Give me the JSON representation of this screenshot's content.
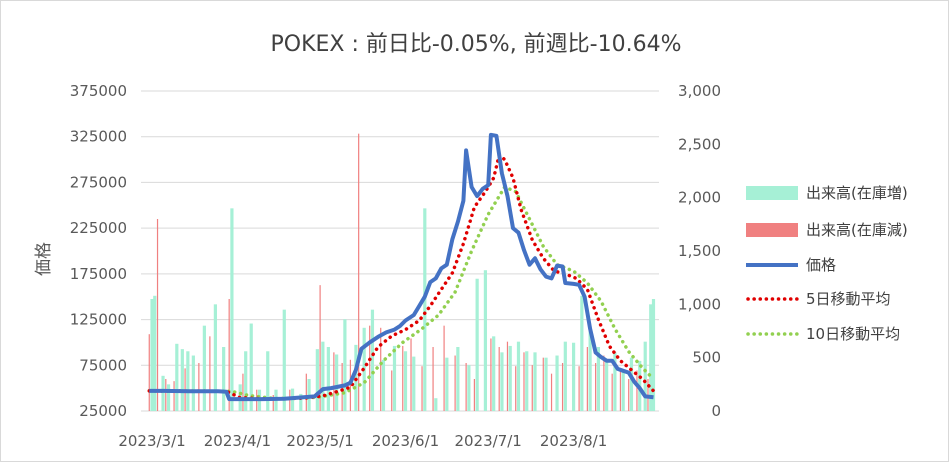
{
  "chart_data": {
    "type": "bar+line",
    "title": "POKEX : 前日比-0.05%, 前週比-10.64%",
    "ylabel": "価格",
    "ylim": [
      25000,
      375000
    ],
    "y2lim": [
      0,
      3000
    ],
    "yticks": [
      "25000",
      "75000",
      "125000",
      "175000",
      "225000",
      "275000",
      "325000",
      "375000"
    ],
    "y2ticks": [
      "0",
      "500",
      "1,000",
      "1,500",
      "2,000",
      "2,500",
      "3,000"
    ],
    "xticks": [
      "2023/3/1",
      "2023/4/1",
      "2023/5/1",
      "2023/6/1",
      "2023/7/1",
      "2023/8/1"
    ],
    "legend_position": "right",
    "series": [
      {
        "name": "出来高(在庫増)",
        "kind": "bar",
        "axis": "right",
        "color": "#a6f0d6"
      },
      {
        "name": "出来高(在庫減)",
        "kind": "bar",
        "axis": "right",
        "color": "#f08080"
      },
      {
        "name": "価格",
        "kind": "line",
        "axis": "left",
        "color": "#4472c4"
      },
      {
        "name": "5日移動平均",
        "kind": "dotted-line",
        "axis": "left",
        "color": "#e00000"
      },
      {
        "name": "10日移動平均",
        "kind": "dotted-line",
        "axis": "left",
        "color": "#92d050"
      }
    ],
    "price": [
      {
        "x": "2023/2/28",
        "y": 47000
      },
      {
        "x": "2023/3/5",
        "y": 47000
      },
      {
        "x": "2023/3/15",
        "y": 46500
      },
      {
        "x": "2023/3/25",
        "y": 46500
      },
      {
        "x": "2023/3/28",
        "y": 46000
      },
      {
        "x": "2023/3/29",
        "y": 38000
      },
      {
        "x": "2023/4/10",
        "y": 38000
      },
      {
        "x": "2023/4/18",
        "y": 38500
      },
      {
        "x": "2023/4/25",
        "y": 40000
      },
      {
        "x": "2023/4/29",
        "y": 41000
      },
      {
        "x": "2023/5/2",
        "y": 49000
      },
      {
        "x": "2023/5/5",
        "y": 50000
      },
      {
        "x": "2023/5/10",
        "y": 53000
      },
      {
        "x": "2023/5/12",
        "y": 56000
      },
      {
        "x": "2023/5/14",
        "y": 70000
      },
      {
        "x": "2023/5/16",
        "y": 93000
      },
      {
        "x": "2023/5/19",
        "y": 100000
      },
      {
        "x": "2023/5/22",
        "y": 106000
      },
      {
        "x": "2023/5/25",
        "y": 111000
      },
      {
        "x": "2023/5/28",
        "y": 114000
      },
      {
        "x": "2023/5/30",
        "y": 118000
      },
      {
        "x": "2023/6/1",
        "y": 124000
      },
      {
        "x": "2023/6/4",
        "y": 130000
      },
      {
        "x": "2023/6/6",
        "y": 140000
      },
      {
        "x": "2023/6/8",
        "y": 150000
      },
      {
        "x": "2023/6/10",
        "y": 166000
      },
      {
        "x": "2023/6/12",
        "y": 170000
      },
      {
        "x": "2023/6/14",
        "y": 181000
      },
      {
        "x": "2023/6/16",
        "y": 185000
      },
      {
        "x": "2023/6/18",
        "y": 213000
      },
      {
        "x": "2023/6/20",
        "y": 232000
      },
      {
        "x": "2023/6/22",
        "y": 255000
      },
      {
        "x": "2023/6/23",
        "y": 310000
      },
      {
        "x": "2023/6/25",
        "y": 270000
      },
      {
        "x": "2023/6/27",
        "y": 260000
      },
      {
        "x": "2023/6/29",
        "y": 268000
      },
      {
        "x": "2023/7/1",
        "y": 272000
      },
      {
        "x": "2023/7/2",
        "y": 327000
      },
      {
        "x": "2023/7/4",
        "y": 326000
      },
      {
        "x": "2023/7/6",
        "y": 285000
      },
      {
        "x": "2023/7/8",
        "y": 260000
      },
      {
        "x": "2023/7/10",
        "y": 225000
      },
      {
        "x": "2023/7/12",
        "y": 220000
      },
      {
        "x": "2023/7/14",
        "y": 201000
      },
      {
        "x": "2023/7/16",
        "y": 185000
      },
      {
        "x": "2023/7/18",
        "y": 192000
      },
      {
        "x": "2023/7/20",
        "y": 180000
      },
      {
        "x": "2023/7/22",
        "y": 172000
      },
      {
        "x": "2023/7/24",
        "y": 170000
      },
      {
        "x": "2023/7/26",
        "y": 184000
      },
      {
        "x": "2023/7/28",
        "y": 183000
      },
      {
        "x": "2023/7/29",
        "y": 165000
      },
      {
        "x": "2023/8/1",
        "y": 164000
      },
      {
        "x": "2023/8/3",
        "y": 163000
      },
      {
        "x": "2023/8/5",
        "y": 150000
      },
      {
        "x": "2023/8/7",
        "y": 115000
      },
      {
        "x": "2023/8/9",
        "y": 89000
      },
      {
        "x": "2023/8/11",
        "y": 84000
      },
      {
        "x": "2023/8/13",
        "y": 80000
      },
      {
        "x": "2023/8/15",
        "y": 80000
      },
      {
        "x": "2023/8/17",
        "y": 71000
      },
      {
        "x": "2023/8/19",
        "y": 69000
      },
      {
        "x": "2023/8/21",
        "y": 67000
      },
      {
        "x": "2023/8/23",
        "y": 57000
      },
      {
        "x": "2023/8/25",
        "y": 50000
      },
      {
        "x": "2023/8/27",
        "y": 41000
      },
      {
        "x": "2023/8/30",
        "y": 40000
      }
    ],
    "ma5": [
      {
        "x": "2023/2/28",
        "y": 47000
      },
      {
        "x": "2023/3/28",
        "y": 46500
      },
      {
        "x": "2023/4/2",
        "y": 39500
      },
      {
        "x": "2023/4/12",
        "y": 38200
      },
      {
        "x": "2023/4/25",
        "y": 39000
      },
      {
        "x": "2023/5/2",
        "y": 41500
      },
      {
        "x": "2023/5/8",
        "y": 47000
      },
      {
        "x": "2023/5/12",
        "y": 51000
      },
      {
        "x": "2023/5/17",
        "y": 72000
      },
      {
        "x": "2023/5/22",
        "y": 95000
      },
      {
        "x": "2023/5/27",
        "y": 107000
      },
      {
        "x": "2023/6/1",
        "y": 114000
      },
      {
        "x": "2023/6/6",
        "y": 124000
      },
      {
        "x": "2023/6/10",
        "y": 140000
      },
      {
        "x": "2023/6/14",
        "y": 158000
      },
      {
        "x": "2023/6/18",
        "y": 176000
      },
      {
        "x": "2023/6/22",
        "y": 208000
      },
      {
        "x": "2023/6/26",
        "y": 248000
      },
      {
        "x": "2023/6/30",
        "y": 265000
      },
      {
        "x": "2023/7/3",
        "y": 280000
      },
      {
        "x": "2023/7/5",
        "y": 305000
      },
      {
        "x": "2023/7/7",
        "y": 300000
      },
      {
        "x": "2023/7/10",
        "y": 280000
      },
      {
        "x": "2023/7/13",
        "y": 245000
      },
      {
        "x": "2023/7/17",
        "y": 212000
      },
      {
        "x": "2023/7/21",
        "y": 192000
      },
      {
        "x": "2023/7/25",
        "y": 178000
      },
      {
        "x": "2023/7/29",
        "y": 175000
      },
      {
        "x": "2023/8/2",
        "y": 170000
      },
      {
        "x": "2023/8/6",
        "y": 158000
      },
      {
        "x": "2023/8/10",
        "y": 125000
      },
      {
        "x": "2023/8/14",
        "y": 96000
      },
      {
        "x": "2023/8/18",
        "y": 80000
      },
      {
        "x": "2023/8/22",
        "y": 70000
      },
      {
        "x": "2023/8/26",
        "y": 60000
      },
      {
        "x": "2023/8/30",
        "y": 47000
      }
    ],
    "ma10": [
      {
        "x": "2023/2/28",
        "y": 47000
      },
      {
        "x": "2023/3/30",
        "y": 46500
      },
      {
        "x": "2023/4/5",
        "y": 42000
      },
      {
        "x": "2023/4/15",
        "y": 38500
      },
      {
        "x": "2023/4/30",
        "y": 40000
      },
      {
        "x": "2023/5/10",
        "y": 45000
      },
      {
        "x": "2023/5/17",
        "y": 56000
      },
      {
        "x": "2023/5/24",
        "y": 80000
      },
      {
        "x": "2023/5/31",
        "y": 100000
      },
      {
        "x": "2023/6/7",
        "y": 115000
      },
      {
        "x": "2023/6/13",
        "y": 130000
      },
      {
        "x": "2023/6/19",
        "y": 155000
      },
      {
        "x": "2023/6/25",
        "y": 200000
      },
      {
        "x": "2023/7/1",
        "y": 240000
      },
      {
        "x": "2023/7/7",
        "y": 270000
      },
      {
        "x": "2023/7/11",
        "y": 265000
      },
      {
        "x": "2023/7/16",
        "y": 235000
      },
      {
        "x": "2023/7/21",
        "y": 205000
      },
      {
        "x": "2023/7/26",
        "y": 185000
      },
      {
        "x": "2023/8/1",
        "y": 178000
      },
      {
        "x": "2023/8/6",
        "y": 165000
      },
      {
        "x": "2023/8/11",
        "y": 145000
      },
      {
        "x": "2023/8/16",
        "y": 115000
      },
      {
        "x": "2023/8/21",
        "y": 90000
      },
      {
        "x": "2023/8/26",
        "y": 72000
      },
      {
        "x": "2023/8/30",
        "y": 60000
      }
    ],
    "volume_increase": [
      {
        "x": "2023/3/1",
        "y": 1050
      },
      {
        "x": "2023/3/2",
        "y": 1080
      },
      {
        "x": "2023/3/5",
        "y": 330
      },
      {
        "x": "2023/3/7",
        "y": 250
      },
      {
        "x": "2023/3/10",
        "y": 630
      },
      {
        "x": "2023/3/12",
        "y": 580
      },
      {
        "x": "2023/3/14",
        "y": 560
      },
      {
        "x": "2023/3/16",
        "y": 520
      },
      {
        "x": "2023/3/20",
        "y": 800
      },
      {
        "x": "2023/3/24",
        "y": 1000
      },
      {
        "x": "2023/3/27",
        "y": 600
      },
      {
        "x": "2023/3/30",
        "y": 1900
      },
      {
        "x": "2023/4/2",
        "y": 250
      },
      {
        "x": "2023/4/4",
        "y": 560
      },
      {
        "x": "2023/4/6",
        "y": 820
      },
      {
        "x": "2023/4/9",
        "y": 200
      },
      {
        "x": "2023/4/12",
        "y": 560
      },
      {
        "x": "2023/4/15",
        "y": 200
      },
      {
        "x": "2023/4/18",
        "y": 950
      },
      {
        "x": "2023/4/21",
        "y": 210
      },
      {
        "x": "2023/4/24",
        "y": 160
      },
      {
        "x": "2023/4/27",
        "y": 300
      },
      {
        "x": "2023/4/30",
        "y": 580
      },
      {
        "x": "2023/5/2",
        "y": 650
      },
      {
        "x": "2023/5/4",
        "y": 600
      },
      {
        "x": "2023/5/7",
        "y": 530
      },
      {
        "x": "2023/5/10",
        "y": 860
      },
      {
        "x": "2023/5/14",
        "y": 620
      },
      {
        "x": "2023/5/17",
        "y": 780
      },
      {
        "x": "2023/5/20",
        "y": 950
      },
      {
        "x": "2023/5/24",
        "y": 480
      },
      {
        "x": "2023/5/28",
        "y": 610
      },
      {
        "x": "2023/6/1",
        "y": 560
      },
      {
        "x": "2023/6/4",
        "y": 510
      },
      {
        "x": "2023/6/8",
        "y": 1900
      },
      {
        "x": "2023/6/12",
        "y": 120
      },
      {
        "x": "2023/6/16",
        "y": 500
      },
      {
        "x": "2023/6/20",
        "y": 600
      },
      {
        "x": "2023/6/24",
        "y": 430
      },
      {
        "x": "2023/6/27",
        "y": 1240
      },
      {
        "x": "2023/6/30",
        "y": 1320
      },
      {
        "x": "2023/7/3",
        "y": 700
      },
      {
        "x": "2023/7/6",
        "y": 550
      },
      {
        "x": "2023/7/9",
        "y": 610
      },
      {
        "x": "2023/7/12",
        "y": 650
      },
      {
        "x": "2023/7/15",
        "y": 560
      },
      {
        "x": "2023/7/18",
        "y": 550
      },
      {
        "x": "2023/7/22",
        "y": 500
      },
      {
        "x": "2023/7/26",
        "y": 520
      },
      {
        "x": "2023/7/29",
        "y": 650
      },
      {
        "x": "2023/8/1",
        "y": 640
      },
      {
        "x": "2023/8/4",
        "y": 1080
      },
      {
        "x": "2023/8/7",
        "y": 750
      },
      {
        "x": "2023/8/10",
        "y": 600
      },
      {
        "x": "2023/8/13",
        "y": 480
      },
      {
        "x": "2023/8/16",
        "y": 550
      },
      {
        "x": "2023/8/19",
        "y": 380
      },
      {
        "x": "2023/8/22",
        "y": 500
      },
      {
        "x": "2023/8/25",
        "y": 470
      },
      {
        "x": "2023/8/27",
        "y": 650
      },
      {
        "x": "2023/8/29",
        "y": 1000
      },
      {
        "x": "2023/8/30",
        "y": 1050
      }
    ],
    "volume_decrease": [
      {
        "x": "2023/2/28",
        "y": 720
      },
      {
        "x": "2023/3/3",
        "y": 1800
      },
      {
        "x": "2023/3/6",
        "y": 300
      },
      {
        "x": "2023/3/9",
        "y": 280
      },
      {
        "x": "2023/3/13",
        "y": 400
      },
      {
        "x": "2023/3/18",
        "y": 450
      },
      {
        "x": "2023/3/22",
        "y": 700
      },
      {
        "x": "2023/3/29",
        "y": 1050
      },
      {
        "x": "2023/4/3",
        "y": 350
      },
      {
        "x": "2023/4/8",
        "y": 200
      },
      {
        "x": "2023/4/14",
        "y": 150
      },
      {
        "x": "2023/4/20",
        "y": 200
      },
      {
        "x": "2023/4/26",
        "y": 350
      },
      {
        "x": "2023/5/1",
        "y": 1180
      },
      {
        "x": "2023/5/6",
        "y": 550
      },
      {
        "x": "2023/5/9",
        "y": 450
      },
      {
        "x": "2023/5/12",
        "y": 480
      },
      {
        "x": "2023/5/15",
        "y": 2600
      },
      {
        "x": "2023/5/19",
        "y": 800
      },
      {
        "x": "2023/5/23",
        "y": 780
      },
      {
        "x": "2023/5/27",
        "y": 380
      },
      {
        "x": "2023/5/31",
        "y": 610
      },
      {
        "x": "2023/6/3",
        "y": 680
      },
      {
        "x": "2023/6/7",
        "y": 420
      },
      {
        "x": "2023/6/11",
        "y": 600
      },
      {
        "x": "2023/6/15",
        "y": 800
      },
      {
        "x": "2023/6/19",
        "y": 520
      },
      {
        "x": "2023/6/23",
        "y": 450
      },
      {
        "x": "2023/6/26",
        "y": 300
      },
      {
        "x": "2023/7/2",
        "y": 680
      },
      {
        "x": "2023/7/5",
        "y": 600
      },
      {
        "x": "2023/7/8",
        "y": 650
      },
      {
        "x": "2023/7/11",
        "y": 420
      },
      {
        "x": "2023/7/14",
        "y": 550
      },
      {
        "x": "2023/7/17",
        "y": 430
      },
      {
        "x": "2023/7/21",
        "y": 500
      },
      {
        "x": "2023/7/24",
        "y": 350
      },
      {
        "x": "2023/7/28",
        "y": 450
      },
      {
        "x": "2023/8/3",
        "y": 420
      },
      {
        "x": "2023/8/6",
        "y": 600
      },
      {
        "x": "2023/8/9",
        "y": 450
      },
      {
        "x": "2023/8/12",
        "y": 520
      },
      {
        "x": "2023/8/15",
        "y": 350
      },
      {
        "x": "2023/8/18",
        "y": 400
      },
      {
        "x": "2023/8/21",
        "y": 300
      },
      {
        "x": "2023/8/24",
        "y": 380
      },
      {
        "x": "2023/8/28",
        "y": 300
      }
    ]
  }
}
